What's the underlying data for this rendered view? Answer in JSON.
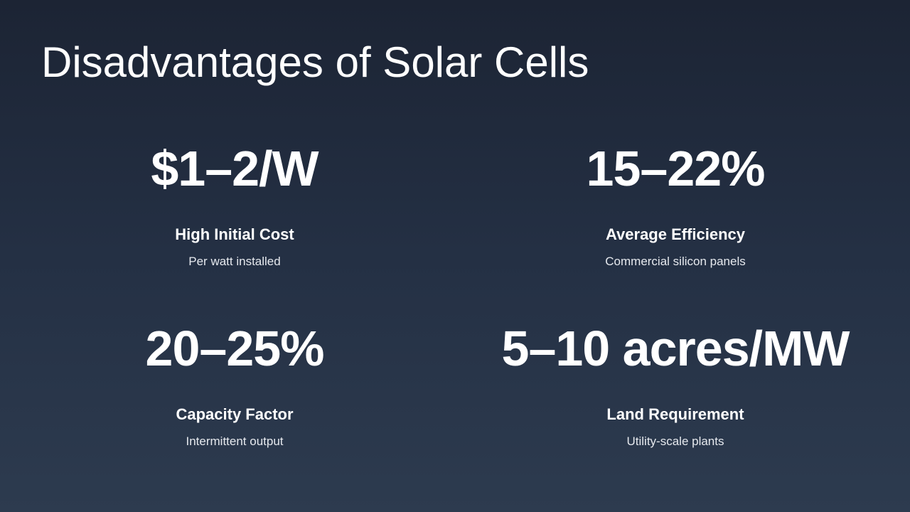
{
  "slide": {
    "title": "Disadvantages of Solar Cells"
  },
  "stats": [
    {
      "value": "$1–2/W",
      "label": "High Initial Cost",
      "description": "Per watt installed"
    },
    {
      "value": "15–22%",
      "label": "Average Efficiency",
      "description": "Commercial silicon panels"
    },
    {
      "value": "20–25%",
      "label": "Capacity Factor",
      "description": "Intermittent output"
    },
    {
      "value": "5–10 acres/MW",
      "label": "Land Requirement",
      "description": "Utility-scale plants"
    }
  ],
  "colors": {
    "background_top": "#1c2434",
    "background_bottom": "#2d3b4f",
    "text": "#ffffff"
  }
}
